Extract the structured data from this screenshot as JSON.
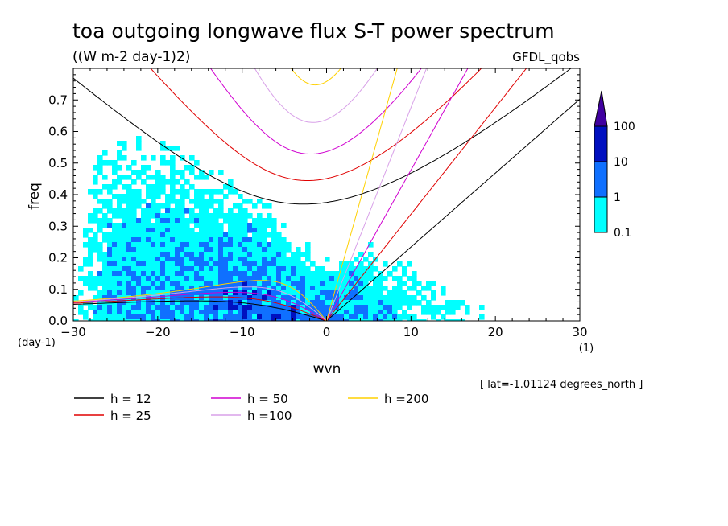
{
  "chart_data": {
    "type": "heatmap",
    "title": "toa outgoing longwave flux S-T power spectrum",
    "subtitle": "((W m-2 day-1)2)",
    "dataset_label": "GFDL_qobs",
    "xlabel": "wvn",
    "ylabel": "freq",
    "x_unit": "(1)",
    "y_unit": "(day-1)",
    "xlim": [
      -30,
      30
    ],
    "ylim": [
      0,
      0.8
    ],
    "x_ticks": [
      -30,
      -20,
      -10,
      0,
      10,
      20,
      30
    ],
    "x_tick_labels": [
      "-30",
      "-20",
      "-10",
      "0",
      "10",
      "20",
      "30"
    ],
    "y_ticks": [
      0.0,
      0.1,
      0.2,
      0.3,
      0.4,
      0.5,
      0.6,
      0.7
    ],
    "y_tick_labels": [
      "0.0",
      "0.1",
      "0.2",
      "0.3",
      "0.4",
      "0.5",
      "0.6",
      "0.7"
    ],
    "annotation": "[ lat=-1.01124 degrees_north ]",
    "colorbar": {
      "levels": [
        "0.1",
        "1",
        "10",
        "100"
      ],
      "colors": [
        "#00ffff",
        "#0f70ff",
        "#0010c0",
        "#4000a0"
      ]
    },
    "series": [
      {
        "name": "h = 12",
        "h": 12,
        "color": "#000000"
      },
      {
        "name": "h = 25",
        "h": 25,
        "color": "#e00000"
      },
      {
        "name": "h = 50",
        "h": 50,
        "color": "#d000d0"
      },
      {
        "name": "h =100",
        "h": 100,
        "color": "#d8a0e8"
      },
      {
        "name": "h =200",
        "h": 200,
        "color": "#ffd000"
      }
    ]
  }
}
